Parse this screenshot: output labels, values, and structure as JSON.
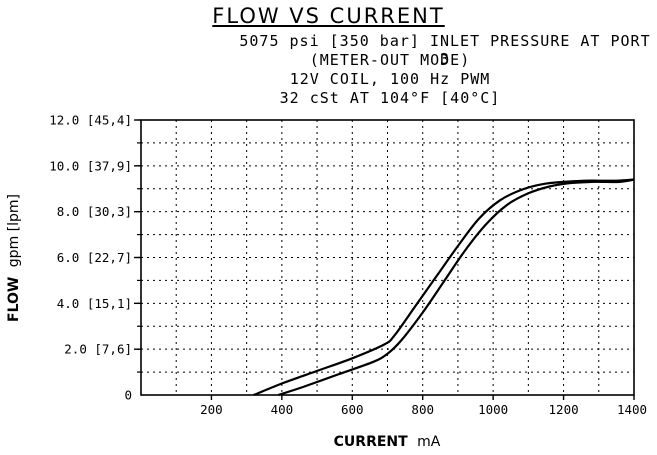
{
  "chart_data": {
    "type": "line",
    "title": "FLOW VS CURRENT",
    "subtitle_lines": [
      "5075 psi [350 bar] INLET PRESSURE AT PORT 3",
      "(METER-OUT MODE)",
      "12V COIL, 100 Hz PWM",
      "32 cSt AT 104°F [40°C]"
    ],
    "xlabel_bold": "CURRENT",
    "xlabel_unit": "mA",
    "ylabel_bold": "FLOW",
    "ylabel_unit": "gpm [lpm]",
    "xlim": [
      0,
      1400
    ],
    "ylim": [
      0,
      12
    ],
    "x_ticks": [
      {
        "value": 0,
        "label": "0"
      },
      {
        "value": 200,
        "label": "200"
      },
      {
        "value": 400,
        "label": "400"
      },
      {
        "value": 600,
        "label": "600"
      },
      {
        "value": 800,
        "label": "800"
      },
      {
        "value": 1000,
        "label": "1000"
      },
      {
        "value": 1200,
        "label": "1200"
      },
      {
        "value": 1400,
        "label": "1400"
      }
    ],
    "y_ticks": [
      {
        "value": 2,
        "label": "2.0 [7,6]"
      },
      {
        "value": 4,
        "label": "4.0 [15,1]"
      },
      {
        "value": 6,
        "label": "6.0 [22,7]"
      },
      {
        "value": 8,
        "label": "8.0 [30,3]"
      },
      {
        "value": 10,
        "label": "10.0 [37,9]"
      },
      {
        "value": 12,
        "label": "12.0 [45,4]"
      }
    ],
    "grid": true,
    "grid_style": "dotted",
    "x_minor_step": 100,
    "y_minor_step": 1,
    "series": [
      {
        "color": "#000000",
        "x": [
          320,
          400,
          500,
          600,
          690,
          720,
          780,
          840,
          900,
          960,
          1020,
          1080,
          1140,
          1200,
          1260,
          1300,
          1350,
          1400
        ],
        "y": [
          0,
          0.5,
          1.05,
          1.6,
          2.2,
          2.6,
          3.9,
          5.2,
          6.5,
          7.7,
          8.5,
          8.95,
          9.2,
          9.3,
          9.35,
          9.35,
          9.35,
          9.4
        ]
      },
      {
        "color": "#000000",
        "x": [
          390,
          460,
          560,
          660,
          700,
          740,
          800,
          860,
          920,
          980,
          1040,
          1100,
          1160,
          1220,
          1280,
          1320,
          1360,
          1400
        ],
        "y": [
          0,
          0.35,
          0.9,
          1.45,
          1.8,
          2.4,
          3.6,
          4.95,
          6.3,
          7.45,
          8.3,
          8.8,
          9.1,
          9.25,
          9.3,
          9.3,
          9.3,
          9.4
        ]
      }
    ]
  }
}
